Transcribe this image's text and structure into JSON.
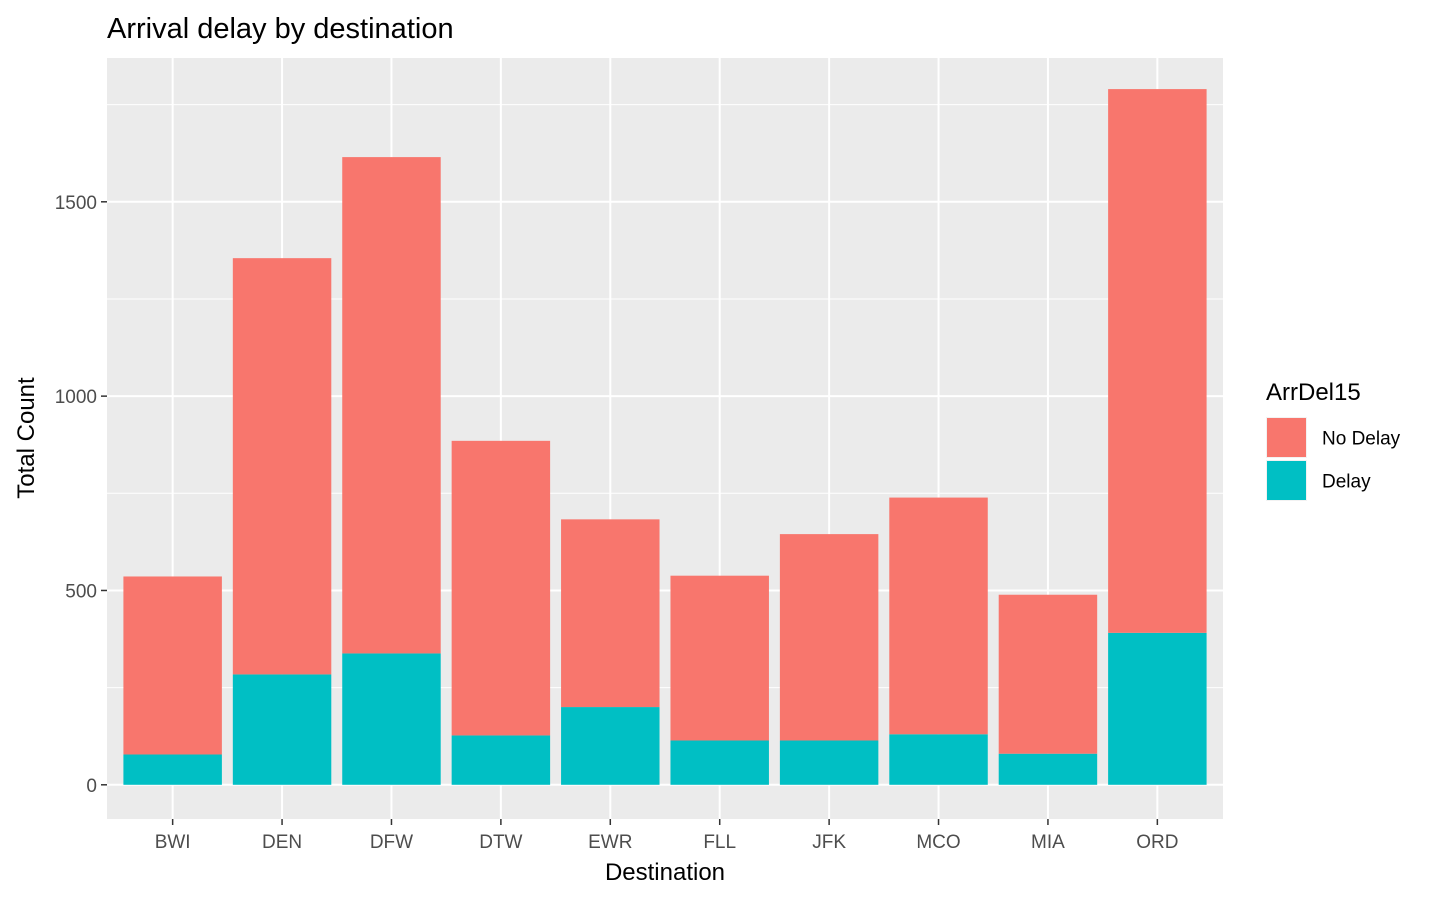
{
  "chart_data": {
    "type": "bar",
    "stacked": true,
    "title": "Arrival delay by destination",
    "xlabel": "Destination",
    "ylabel": "Total Count",
    "categories": [
      "BWI",
      "DEN",
      "DFW",
      "DTW",
      "EWR",
      "FLL",
      "JFK",
      "MCO",
      "MIA",
      "ORD"
    ],
    "series": [
      {
        "name": "Delay",
        "color": "#00BFC4",
        "values": [
          78,
          284,
          338,
          127,
          200,
          114,
          114,
          130,
          80,
          391
        ]
      },
      {
        "name": "No Delay",
        "color": "#F8766D",
        "values": [
          458,
          1071,
          1277,
          758,
          483,
          424,
          531,
          609,
          409,
          1399
        ]
      }
    ],
    "ylim": [
      -88,
      1870
    ],
    "yticks": [
      0,
      500,
      1000,
      1500
    ],
    "ytick_labels": [
      "0",
      "500",
      "1000",
      "1500"
    ],
    "grid": true,
    "legend": {
      "title": "ArrDel15",
      "position": "right",
      "items": [
        {
          "label": "No Delay",
          "color": "#F8766D"
        },
        {
          "label": "Delay",
          "color": "#00BFC4"
        }
      ]
    }
  }
}
